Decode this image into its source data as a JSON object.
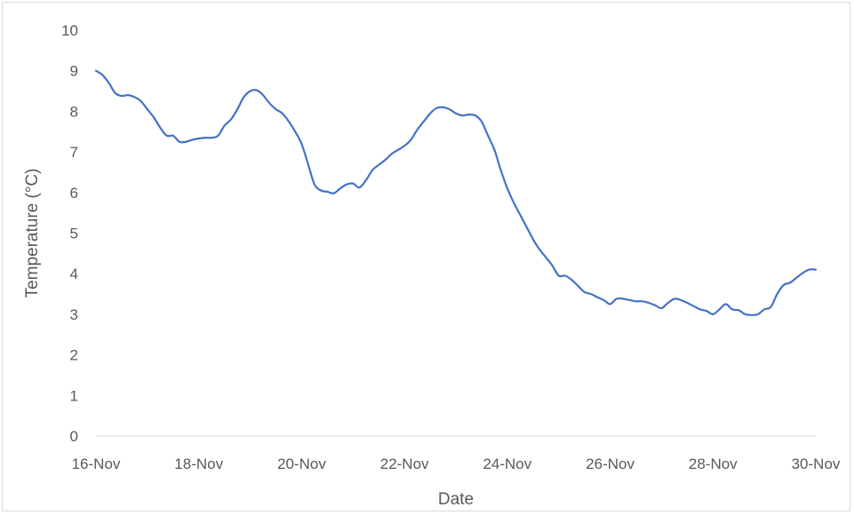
{
  "chart_data": {
    "type": "line",
    "title": "",
    "xlabel": "Date",
    "ylabel": "Temperature (°C)",
    "ylim": [
      0,
      10
    ],
    "yticks": [
      "0",
      "1",
      "2",
      "3",
      "4",
      "5",
      "6",
      "7",
      "8",
      "9",
      "10"
    ],
    "xlim": [
      "16-Nov",
      "30-Nov"
    ],
    "xticks": [
      "16-Nov",
      "18-Nov",
      "20-Nov",
      "22-Nov",
      "24-Nov",
      "26-Nov",
      "28-Nov",
      "30-Nov"
    ],
    "grid": false,
    "legend": "none",
    "series": [
      {
        "color": "#4472c4",
        "points": [
          [
            "16-Nov 00:00",
            9.0
          ],
          [
            "16-Nov 03:00",
            8.9
          ],
          [
            "16-Nov 06:00",
            8.7
          ],
          [
            "16-Nov 09:00",
            8.45
          ],
          [
            "16-Nov 12:00",
            8.38
          ],
          [
            "16-Nov 15:00",
            8.4
          ],
          [
            "16-Nov 18:00",
            8.35
          ],
          [
            "16-Nov 21:00",
            8.25
          ],
          [
            "17-Nov 00:00",
            8.05
          ],
          [
            "17-Nov 03:00",
            7.85
          ],
          [
            "17-Nov 06:00",
            7.6
          ],
          [
            "17-Nov 09:00",
            7.4
          ],
          [
            "17-Nov 12:00",
            7.4
          ],
          [
            "17-Nov 15:00",
            7.25
          ],
          [
            "17-Nov 18:00",
            7.25
          ],
          [
            "17-Nov 21:00",
            7.3
          ],
          [
            "18-Nov 00:00",
            7.33
          ],
          [
            "18-Nov 03:00",
            7.35
          ],
          [
            "18-Nov 06:00",
            7.35
          ],
          [
            "18-Nov 09:00",
            7.4
          ],
          [
            "18-Nov 12:00",
            7.65
          ],
          [
            "18-Nov 15:00",
            7.8
          ],
          [
            "18-Nov 18:00",
            8.05
          ],
          [
            "18-Nov 21:00",
            8.35
          ],
          [
            "19-Nov 00:00",
            8.5
          ],
          [
            "19-Nov 03:00",
            8.52
          ],
          [
            "19-Nov 06:00",
            8.4
          ],
          [
            "19-Nov 09:00",
            8.2
          ],
          [
            "19-Nov 12:00",
            8.05
          ],
          [
            "19-Nov 15:00",
            7.95
          ],
          [
            "19-Nov 18:00",
            7.75
          ],
          [
            "19-Nov 21:00",
            7.5
          ],
          [
            "20-Nov 00:00",
            7.2
          ],
          [
            "20-Nov 03:00",
            6.7
          ],
          [
            "20-Nov 06:00",
            6.2
          ],
          [
            "20-Nov 09:00",
            6.05
          ],
          [
            "20-Nov 12:00",
            6.02
          ],
          [
            "20-Nov 15:00",
            5.98
          ],
          [
            "20-Nov 18:00",
            6.1
          ],
          [
            "20-Nov 21:00",
            6.2
          ],
          [
            "21-Nov 00:00",
            6.22
          ],
          [
            "21-Nov 03:00",
            6.12
          ],
          [
            "21-Nov 06:00",
            6.3
          ],
          [
            "21-Nov 09:00",
            6.55
          ],
          [
            "21-Nov 12:00",
            6.68
          ],
          [
            "21-Nov 15:00",
            6.8
          ],
          [
            "21-Nov 18:00",
            6.95
          ],
          [
            "21-Nov 21:00",
            7.05
          ],
          [
            "22-Nov 00:00",
            7.15
          ],
          [
            "22-Nov 03:00",
            7.3
          ],
          [
            "22-Nov 06:00",
            7.55
          ],
          [
            "22-Nov 09:00",
            7.75
          ],
          [
            "22-Nov 12:00",
            7.95
          ],
          [
            "22-Nov 15:00",
            8.08
          ],
          [
            "22-Nov 18:00",
            8.1
          ],
          [
            "22-Nov 21:00",
            8.05
          ],
          [
            "23-Nov 00:00",
            7.95
          ],
          [
            "23-Nov 03:00",
            7.9
          ],
          [
            "23-Nov 06:00",
            7.92
          ],
          [
            "23-Nov 09:00",
            7.9
          ],
          [
            "23-Nov 12:00",
            7.75
          ],
          [
            "23-Nov 15:00",
            7.4
          ],
          [
            "23-Nov 18:00",
            7.05
          ],
          [
            "23-Nov 21:00",
            6.55
          ],
          [
            "24-Nov 00:00",
            6.1
          ],
          [
            "24-Nov 03:00",
            5.75
          ],
          [
            "24-Nov 06:00",
            5.45
          ],
          [
            "24-Nov 09:00",
            5.15
          ],
          [
            "24-Nov 12:00",
            4.85
          ],
          [
            "24-Nov 15:00",
            4.6
          ],
          [
            "24-Nov 18:00",
            4.4
          ],
          [
            "24-Nov 21:00",
            4.2
          ],
          [
            "25-Nov 00:00",
            3.95
          ],
          [
            "25-Nov 03:00",
            3.95
          ],
          [
            "25-Nov 06:00",
            3.85
          ],
          [
            "25-Nov 09:00",
            3.7
          ],
          [
            "25-Nov 12:00",
            3.55
          ],
          [
            "25-Nov 15:00",
            3.5
          ],
          [
            "25-Nov 18:00",
            3.42
          ],
          [
            "25-Nov 21:00",
            3.35
          ],
          [
            "26-Nov 00:00",
            3.25
          ],
          [
            "26-Nov 03:00",
            3.38
          ],
          [
            "26-Nov 06:00",
            3.38
          ],
          [
            "26-Nov 09:00",
            3.35
          ],
          [
            "26-Nov 12:00",
            3.32
          ],
          [
            "26-Nov 15:00",
            3.32
          ],
          [
            "26-Nov 18:00",
            3.28
          ],
          [
            "26-Nov 21:00",
            3.22
          ],
          [
            "27-Nov 00:00",
            3.15
          ],
          [
            "27-Nov 03:00",
            3.28
          ],
          [
            "27-Nov 06:00",
            3.38
          ],
          [
            "27-Nov 09:00",
            3.35
          ],
          [
            "27-Nov 12:00",
            3.28
          ],
          [
            "27-Nov 15:00",
            3.2
          ],
          [
            "27-Nov 18:00",
            3.12
          ],
          [
            "27-Nov 21:00",
            3.08
          ],
          [
            "28-Nov 00:00",
            3.0
          ],
          [
            "28-Nov 03:00",
            3.12
          ],
          [
            "28-Nov 06:00",
            3.25
          ],
          [
            "28-Nov 09:00",
            3.12
          ],
          [
            "28-Nov 12:00",
            3.1
          ],
          [
            "28-Nov 15:00",
            3.0
          ],
          [
            "28-Nov 18:00",
            2.98
          ],
          [
            "28-Nov 21:00",
            3.0
          ],
          [
            "29-Nov 00:00",
            3.12
          ],
          [
            "29-Nov 03:00",
            3.18
          ],
          [
            "29-Nov 06:00",
            3.5
          ],
          [
            "29-Nov 09:00",
            3.72
          ],
          [
            "29-Nov 12:00",
            3.78
          ],
          [
            "29-Nov 15:00",
            3.9
          ],
          [
            "29-Nov 18:00",
            4.02
          ],
          [
            "29-Nov 21:00",
            4.1
          ],
          [
            "30-Nov 00:00",
            4.1
          ]
        ]
      }
    ]
  }
}
